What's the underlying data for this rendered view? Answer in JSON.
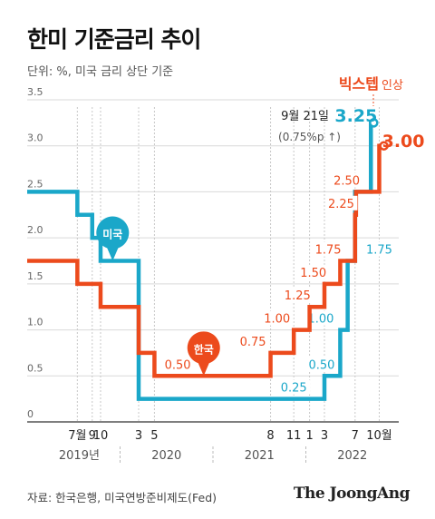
{
  "title": "한미 기준금리 추이",
  "unit_note": "단위: %, 미국 금리 상단 기준",
  "source": "자료: 한국은행, 미국연방준비제도(Fed)",
  "brand": "The JoongAng",
  "colors": {
    "us": "#1aa7c9",
    "kr": "#ec4a1c",
    "grid": "#d9d9d9",
    "axis": "#333333",
    "text": "#333333"
  },
  "chart_data": {
    "type": "line",
    "step": true,
    "ylim": [
      0,
      3.5
    ],
    "y_ticks": [
      "0",
      "0.5",
      "1.0",
      "1.5",
      "2.0",
      "2.5",
      "3.0",
      "3.5"
    ],
    "x_month_labels": [
      {
        "label": "7월",
        "t": 2019.54
      },
      {
        "label": "9",
        "t": 2019.7
      },
      {
        "label": "10",
        "t": 2019.79
      },
      {
        "label": "3",
        "t": 2020.2
      },
      {
        "label": "5",
        "t": 2020.37
      },
      {
        "label": "8",
        "t": 2021.62
      },
      {
        "label": "11",
        "t": 2021.87
      },
      {
        "label": "1",
        "t": 2022.04
      },
      {
        "label": "3",
        "t": 2022.2
      },
      {
        "label": "7",
        "t": 2022.53
      },
      {
        "label": "10월",
        "t": 2022.79
      }
    ],
    "years": [
      "2019년",
      "2020",
      "2021",
      "2022"
    ],
    "series": [
      {
        "name": "미국",
        "key": "us",
        "points": [
          [
            2019.0,
            2.5
          ],
          [
            2019.54,
            2.25
          ],
          [
            2019.7,
            2.0
          ],
          [
            2019.79,
            1.75
          ],
          [
            2020.2,
            0.25
          ],
          [
            2022.2,
            0.5
          ],
          [
            2022.37,
            1.0
          ],
          [
            2022.45,
            1.75
          ],
          [
            2022.53,
            2.5
          ],
          [
            2022.7,
            3.25
          ],
          [
            2022.73,
            3.25
          ]
        ],
        "value_labels": [
          {
            "text": "0.25",
            "t": 2021.87,
            "v": 0.25
          },
          {
            "text": "0.50",
            "t": 2022.17,
            "v": 0.5
          },
          {
            "text": "1.00",
            "t": 2022.16,
            "v": 1.0
          },
          {
            "text": "1.75",
            "t": 2022.79,
            "v": 1.75
          }
        ]
      },
      {
        "name": "한국",
        "key": "kr",
        "points": [
          [
            2019.0,
            1.75
          ],
          [
            2019.54,
            1.5
          ],
          [
            2019.79,
            1.25
          ],
          [
            2020.2,
            0.75
          ],
          [
            2020.37,
            0.5
          ],
          [
            2021.62,
            0.75
          ],
          [
            2021.87,
            1.0
          ],
          [
            2022.04,
            1.25
          ],
          [
            2022.2,
            1.5
          ],
          [
            2022.37,
            1.75
          ],
          [
            2022.53,
            2.25
          ],
          [
            2022.54,
            2.5
          ],
          [
            2022.79,
            3.0
          ],
          [
            2022.84,
            3.0
          ]
        ],
        "value_labels": [
          {
            "text": "0.50",
            "t": 2020.62,
            "v": 0.5
          },
          {
            "text": "0.75",
            "t": 2021.43,
            "v": 0.75
          },
          {
            "text": "1.00",
            "t": 2021.69,
            "v": 1.0
          },
          {
            "text": "1.25",
            "t": 2021.91,
            "v": 1.25
          },
          {
            "text": "1.50",
            "t": 2022.08,
            "v": 1.5
          },
          {
            "text": "1.75",
            "t": 2022.24,
            "v": 1.75
          },
          {
            "text": "2.25",
            "t": 2022.38,
            "v": 2.25
          },
          {
            "text": "2.50",
            "t": 2022.44,
            "v": 2.5
          }
        ]
      }
    ],
    "end_labels": {
      "us_date": "9월 21일",
      "us_value": "3.25",
      "us_note": "(0.75%p ↑)",
      "kr_value": "3.00",
      "big_step": "빅스텝",
      "big_step_suffix": "인상"
    },
    "markers": [
      {
        "text": "미국",
        "series": "us",
        "t": 2019.92,
        "v": 1.75
      },
      {
        "text": "한국",
        "series": "kr",
        "t": 2020.9,
        "v": 0.5
      }
    ]
  }
}
